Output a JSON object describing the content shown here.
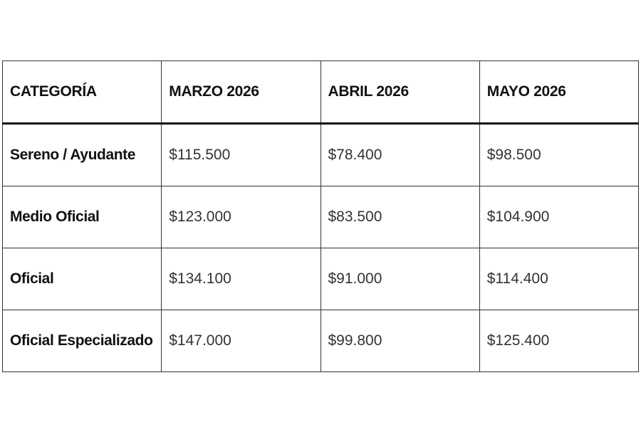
{
  "table": {
    "header": [
      "CATEGORÍA",
      "MARZO 2026",
      "ABRIL 2026",
      "MAYO 2026"
    ],
    "rows": [
      [
        "Sereno / Ayudante",
        "$115.500",
        "$78.400",
        "$98.500"
      ],
      [
        "Medio Oficial",
        "$123.000",
        "$83.500",
        "$104.900"
      ],
      [
        "Oficial",
        "$134.100",
        "$91.000",
        "$114.400"
      ],
      [
        "Oficial Especializado",
        "$147.000",
        "$99.800",
        "$125.400"
      ]
    ]
  }
}
